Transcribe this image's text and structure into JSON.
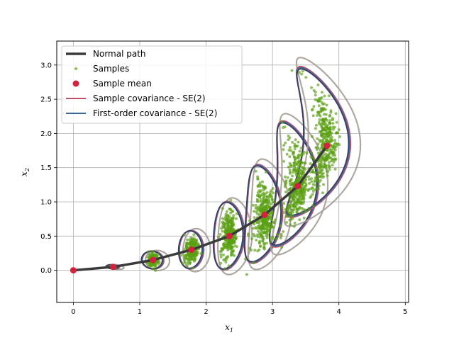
{
  "chart_data": {
    "type": "scatter",
    "title": "",
    "xlabel": "x",
    "xlabel_sub": "1",
    "ylabel": "x",
    "ylabel_sub": "2",
    "xlim": [
      -0.25,
      5.05
    ],
    "ylim": [
      -0.47,
      3.35
    ],
    "xticks": [
      0,
      1,
      2,
      3,
      4,
      5
    ],
    "yticks": [
      0.0,
      0.5,
      1.0,
      1.5,
      2.0,
      2.5,
      3.0
    ],
    "xtick_labels": [
      "0",
      "1",
      "2",
      "3",
      "4",
      "5"
    ],
    "ytick_labels": [
      "0.0",
      "0.5",
      "1.0",
      "1.5",
      "2.0",
      "2.5",
      "3.0"
    ],
    "grid": true,
    "legend_position": "top-left",
    "colors": {
      "path": "#3a3a3a",
      "samples": "#5aa012",
      "mean": "#d62040",
      "sample_cov": "#c0506a",
      "first_order_cov": "#3a6a98",
      "outer_cov": "#a69f96",
      "inner_cov": "#3d3a5c"
    },
    "legend": [
      {
        "label": "Normal path",
        "style": "line",
        "color": "#3a3a3a"
      },
      {
        "label": "Samples",
        "style": "dot",
        "color": "#5aa012"
      },
      {
        "label": "Sample mean",
        "style": "marker",
        "color": "#d62040"
      },
      {
        "label": "Sample covariance - SE(2)",
        "style": "line",
        "color": "#c0506a"
      },
      {
        "label": "First-order covariance - SE(2)",
        "style": "line",
        "color": "#3a6a98"
      }
    ],
    "series": [
      {
        "name": "Normal path",
        "x": [
          0,
          0.6,
          1.2,
          1.78,
          2.35,
          2.88,
          3.38,
          3.82
        ],
        "y": [
          0,
          0.05,
          0.15,
          0.3,
          0.5,
          0.81,
          1.23,
          1.82
        ]
      },
      {
        "name": "Sample mean",
        "x": [
          0,
          0.6,
          1.2,
          1.78,
          2.35,
          2.88,
          3.38,
          3.82
        ],
        "y": [
          0,
          0.05,
          0.15,
          0.3,
          0.5,
          0.81,
          1.23,
          1.82
        ]
      }
    ],
    "sample_clusters": [
      {
        "cx": 0.6,
        "cy": 0.05,
        "spread": 0.03,
        "len": 0.03,
        "bend": 0.0,
        "n": 60
      },
      {
        "cx": 1.2,
        "cy": 0.15,
        "spread": 0.06,
        "len": 0.13,
        "bend": 0.0,
        "n": 200
      },
      {
        "cx": 1.78,
        "cy": 0.3,
        "spread": 0.07,
        "len": 0.28,
        "bend": 0.05,
        "n": 250
      },
      {
        "cx": 2.35,
        "cy": 0.5,
        "spread": 0.09,
        "len": 0.5,
        "bend": 0.12,
        "n": 300
      },
      {
        "cx": 2.88,
        "cy": 0.81,
        "spread": 0.11,
        "len": 0.72,
        "bend": 0.22,
        "n": 330
      },
      {
        "cx": 3.38,
        "cy": 1.23,
        "spread": 0.13,
        "len": 0.92,
        "bend": 0.35,
        "n": 350
      },
      {
        "cx": 3.82,
        "cy": 1.82,
        "spread": 0.15,
        "len": 1.1,
        "bend": 0.5,
        "n": 380
      }
    ]
  }
}
